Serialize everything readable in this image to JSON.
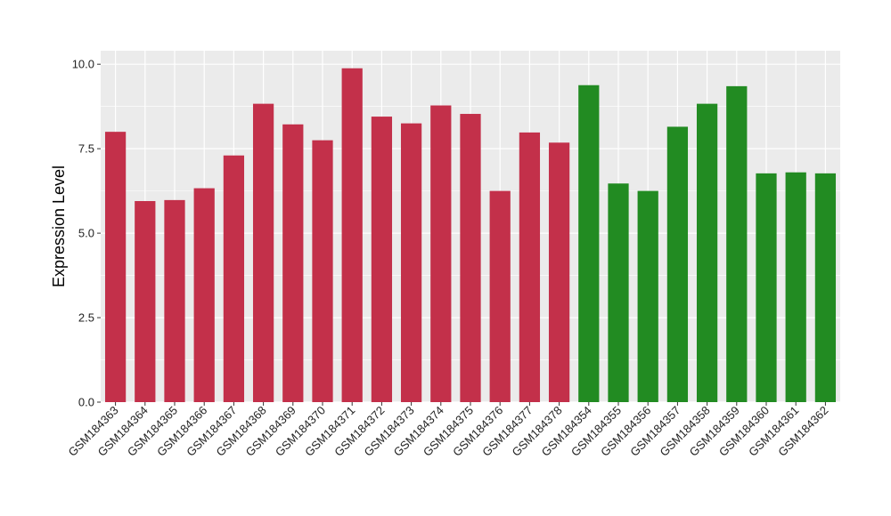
{
  "chart_data": {
    "type": "bar",
    "title": "",
    "xlabel": "",
    "ylabel": "Expression Level",
    "ylim": [
      0,
      10.4
    ],
    "yticks": [
      0.0,
      2.5,
      5.0,
      7.5,
      10.0
    ],
    "ytick_labels": [
      "0.0",
      "2.5",
      "5.0",
      "7.5",
      "10.0"
    ],
    "grid": true,
    "legend": "none",
    "background_color": "#ebebeb",
    "grid_color": "#ffffff",
    "categories": [
      "GSM184363",
      "GSM184364",
      "GSM184365",
      "GSM184366",
      "GSM184367",
      "GSM184368",
      "GSM184369",
      "GSM184370",
      "GSM184371",
      "GSM184372",
      "GSM184373",
      "GSM184374",
      "GSM184375",
      "GSM184376",
      "GSM184377",
      "GSM184378",
      "GSM184354",
      "GSM184355",
      "GSM184356",
      "GSM184357",
      "GSM184358",
      "GSM184359",
      "GSM184360",
      "GSM184361",
      "GSM184362"
    ],
    "values": [
      8.0,
      5.95,
      5.98,
      6.33,
      7.3,
      8.83,
      8.22,
      7.75,
      9.88,
      8.45,
      8.25,
      8.78,
      8.53,
      6.25,
      7.98,
      7.68,
      9.38,
      6.47,
      6.25,
      8.15,
      8.83,
      9.35,
      6.77,
      6.8,
      6.77
    ],
    "bar_colors": [
      "#c3304a",
      "#c3304a",
      "#c3304a",
      "#c3304a",
      "#c3304a",
      "#c3304a",
      "#c3304a",
      "#c3304a",
      "#c3304a",
      "#c3304a",
      "#c3304a",
      "#c3304a",
      "#c3304a",
      "#c3304a",
      "#c3304a",
      "#c3304a",
      "#228b22",
      "#228b22",
      "#228b22",
      "#228b22",
      "#228b22",
      "#228b22",
      "#228b22",
      "#228b22",
      "#228b22"
    ]
  }
}
